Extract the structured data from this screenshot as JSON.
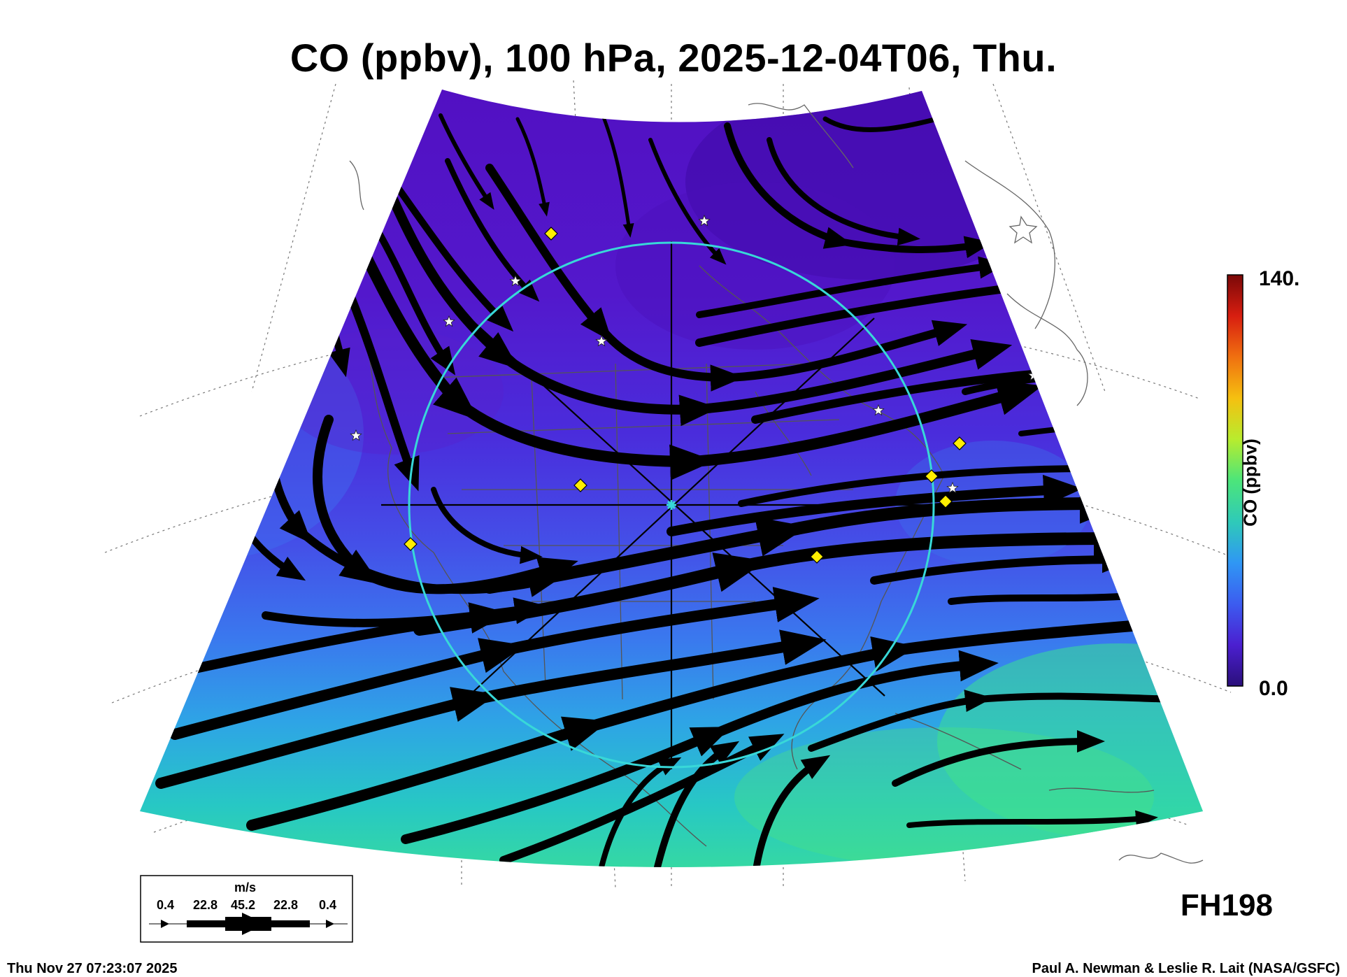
{
  "title": "CO (ppbv), 100 hPa, 2025-12-04T06, Thu.",
  "colorbar": {
    "label": "CO (ppbv)",
    "max_label": "140.",
    "min_label": "0.0",
    "stops": [
      "#2a0f7a",
      "#4b1fd0",
      "#3c5cf0",
      "#2f97f4",
      "#2fcab8",
      "#4ce57a",
      "#b8ec2e",
      "#f5c010",
      "#f07010",
      "#d81e10",
      "#7a0808"
    ]
  },
  "field_colors": {
    "north": "#5412c4",
    "deep_north": "#3e0aa6",
    "mid": "#4a2de0",
    "blue": "#3f6ef0",
    "cyan": "#28a6e8",
    "teal": "#26cfc0",
    "green": "#3be094"
  },
  "wind_key": {
    "unit": "m/s",
    "values": [
      "0.4",
      "22.8",
      "45.2",
      "22.8",
      "0.4"
    ]
  },
  "forecast_hour": "FH198",
  "footer": {
    "timestamp": "Thu Nov 27 07:23:07 2025",
    "credit": "Paul A. Newman & Leslie R. Lait (NASA/GSFC)"
  },
  "overlay_colors": {
    "ring": "#38d8d8",
    "diamond": "#ffee00",
    "star": "#ffffff"
  },
  "station_markers": [
    "diamond",
    "diamond",
    "diamond",
    "diamond",
    "diamond",
    "diamond",
    "diamond",
    "star",
    "star",
    "star",
    "star",
    "star",
    "star",
    "star",
    "star"
  ]
}
